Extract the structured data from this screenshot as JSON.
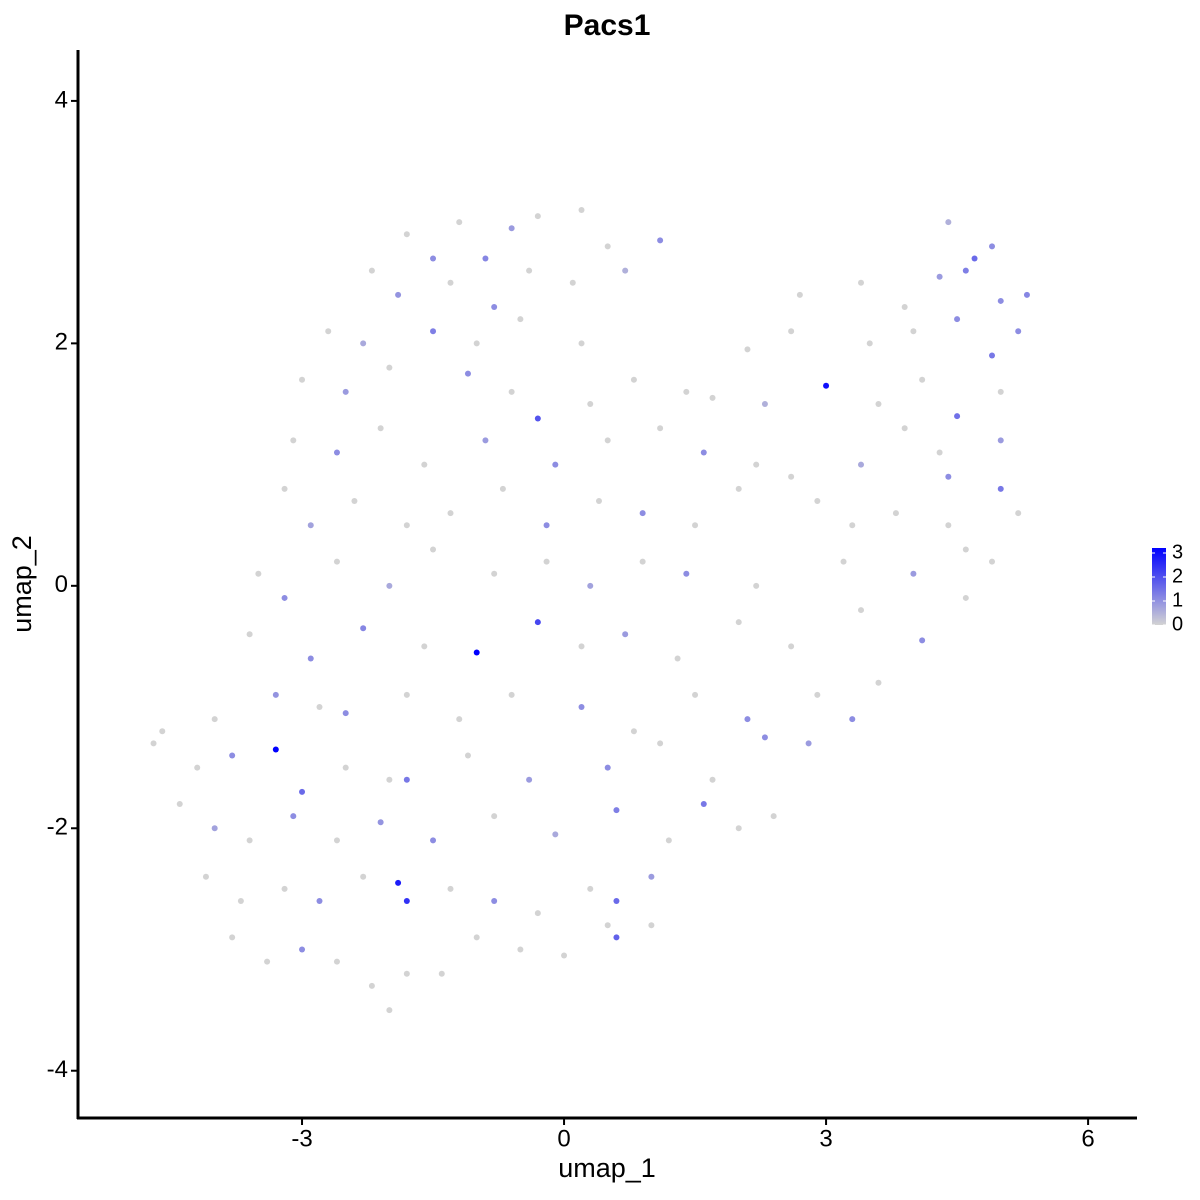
{
  "chart_data": {
    "type": "scatter",
    "title": "Pacs1",
    "xlabel": "umap_1",
    "ylabel": "umap_2",
    "xlim": [
      -5.565,
      6.56
    ],
    "ylim": [
      -4.39,
      4.42
    ],
    "xticks": [
      -3,
      0,
      3,
      6
    ],
    "yticks": [
      -4,
      -2,
      0,
      2,
      4
    ],
    "colorbar": {
      "low": "#d3d3d3",
      "high": "#0000ff",
      "clim": [
        0,
        3
      ],
      "ticks": [
        0,
        1,
        2,
        3
      ]
    },
    "x": [
      -1.8,
      -1.2,
      -0.6,
      -0.3,
      0.2,
      0.5,
      -1.5,
      -0.9,
      1.1,
      4.4,
      4.7,
      4.9,
      -2.2,
      -1.9,
      -1.3,
      -0.8,
      -0.4,
      0.1,
      0.7,
      2.7,
      3.4,
      3.9,
      4.3,
      4.6,
      5.0,
      5.3,
      -2.7,
      -2.3,
      -1.5,
      -1.0,
      -0.5,
      0.2,
      2.1,
      2.6,
      3.5,
      4.0,
      4.5,
      4.9,
      5.2,
      -3.0,
      -2.5,
      -2.0,
      -1.1,
      -0.6,
      -0.3,
      0.3,
      0.8,
      1.4,
      1.7,
      2.3,
      3.0,
      3.6,
      4.1,
      4.5,
      5.0,
      -3.1,
      -2.6,
      -2.1,
      -1.6,
      -0.9,
      -0.1,
      0.5,
      1.1,
      1.6,
      2.2,
      2.6,
      3.4,
      3.9,
      4.3,
      4.4,
      5.0,
      -3.2,
      -2.9,
      -2.4,
      -1.8,
      -1.3,
      -0.7,
      -0.2,
      0.4,
      0.9,
      1.5,
      2.0,
      2.9,
      3.3,
      3.8,
      4.4,
      5.0,
      5.2,
      -3.5,
      -3.2,
      -2.6,
      -2.0,
      -1.5,
      -0.8,
      -0.2,
      0.3,
      0.9,
      1.4,
      2.2,
      3.2,
      4.0,
      4.6,
      4.9,
      -3.6,
      -2.9,
      -2.3,
      -1.6,
      -1.0,
      -0.3,
      0.2,
      0.7,
      1.3,
      2.0,
      2.6,
      3.4,
      4.1,
      4.6,
      -4.6,
      -4.0,
      -3.3,
      -2.8,
      -2.5,
      -1.8,
      -1.2,
      -0.6,
      0.2,
      0.8,
      1.5,
      2.1,
      2.9,
      3.3,
      3.6,
      -4.7,
      -4.2,
      -3.8,
      -3.3,
      -3.0,
      -2.5,
      -2.0,
      -1.8,
      -1.1,
      -0.4,
      0.5,
      1.1,
      1.7,
      2.3,
      2.8,
      -4.4,
      -4.0,
      -3.6,
      -3.1,
      -2.6,
      -2.1,
      -1.5,
      -0.8,
      -0.1,
      0.6,
      1.2,
      1.6,
      2.0,
      2.4,
      -4.1,
      -3.7,
      -3.2,
      -2.8,
      -2.3,
      -1.9,
      -1.8,
      -1.3,
      -0.8,
      -0.3,
      0.3,
      0.6,
      1.0,
      -3.8,
      -3.4,
      -3.0,
      -2.6,
      -2.2,
      -2.0,
      -1.8,
      -1.4,
      -1.0,
      -0.5,
      0.0,
      0.5,
      0.6,
      1.0
    ],
    "y": [
      2.9,
      3.0,
      2.95,
      3.05,
      3.1,
      2.8,
      2.7,
      2.7,
      2.85,
      3.0,
      2.7,
      2.8,
      2.6,
      2.4,
      2.5,
      2.3,
      2.6,
      2.5,
      2.6,
      2.4,
      2.5,
      2.3,
      2.55,
      2.6,
      2.35,
      2.4,
      2.1,
      2.0,
      2.1,
      2.0,
      2.2,
      2.0,
      1.95,
      2.1,
      2.0,
      2.1,
      2.2,
      1.9,
      2.1,
      1.7,
      1.6,
      1.8,
      1.75,
      1.6,
      1.38,
      1.5,
      1.7,
      1.6,
      1.55,
      1.5,
      1.65,
      1.5,
      1.7,
      1.4,
      1.6,
      1.2,
      1.1,
      1.3,
      1.0,
      1.2,
      1.0,
      1.2,
      1.3,
      1.1,
      1.0,
      0.9,
      1.0,
      1.3,
      1.1,
      0.9,
      1.2,
      0.8,
      0.5,
      0.7,
      0.5,
      0.6,
      0.8,
      0.5,
      0.7,
      0.6,
      0.5,
      0.8,
      0.7,
      0.5,
      0.6,
      0.5,
      0.8,
      0.6,
      0.1,
      -0.1,
      0.2,
      0.0,
      0.3,
      0.1,
      0.2,
      0.0,
      0.2,
      0.1,
      0.0,
      0.2,
      0.1,
      0.3,
      0.2,
      -0.4,
      -0.6,
      -0.35,
      -0.5,
      -0.55,
      -0.3,
      -0.5,
      -0.4,
      -0.6,
      -0.3,
      -0.5,
      -0.2,
      -0.45,
      -0.1,
      -1.2,
      -1.1,
      -0.9,
      -1.0,
      -1.05,
      -0.9,
      -1.1,
      -0.9,
      -1.0,
      -1.2,
      -0.9,
      -1.1,
      -0.9,
      -1.1,
      -0.8,
      -1.3,
      -1.5,
      -1.4,
      -1.35,
      -1.7,
      -1.5,
      -1.6,
      -1.6,
      -1.4,
      -1.6,
      -1.5,
      -1.3,
      -1.6,
      -1.25,
      -1.3,
      -1.8,
      -2.0,
      -2.1,
      -1.9,
      -2.1,
      -1.95,
      -2.1,
      -1.9,
      -2.05,
      -1.85,
      -2.1,
      -1.8,
      -2.0,
      -1.9,
      -2.4,
      -2.6,
      -2.5,
      -2.6,
      -2.4,
      -2.45,
      -2.6,
      -2.5,
      -2.6,
      -2.7,
      -2.5,
      -2.6,
      -2.4,
      -2.9,
      -3.1,
      -3.0,
      -3.1,
      -3.3,
      -3.5,
      -3.2,
      -3.2,
      -2.9,
      -3.0,
      -3.05,
      -2.8,
      -2.9,
      -2.8
    ],
    "values": [
      0,
      0,
      0.8,
      0,
      0,
      0,
      1,
      1.1,
      1,
      0.5,
      1.5,
      1,
      0,
      0.9,
      0,
      1,
      0,
      0,
      0.5,
      0,
      0,
      0,
      0.8,
      1.2,
      1,
      1.1,
      0,
      0.6,
      1.2,
      0,
      0,
      0,
      0,
      0,
      0,
      0,
      1,
      1.3,
      1,
      0,
      0.8,
      0,
      1,
      0,
      1.8,
      0,
      0,
      0,
      0,
      0.5,
      2.8,
      0,
      0,
      1.4,
      0,
      0,
      1,
      0,
      0,
      0.8,
      1,
      0,
      0,
      1,
      0,
      0,
      0.6,
      0,
      0,
      1,
      0.8,
      0,
      0.7,
      0,
      0,
      0,
      0,
      1,
      0,
      1,
      0,
      0,
      0,
      0,
      0,
      0,
      1.3,
      0,
      0,
      1,
      0,
      0.6,
      0,
      0,
      0,
      0.7,
      0,
      1,
      0,
      0,
      0.8,
      0,
      0,
      0,
      1,
      1.1,
      0,
      3,
      2,
      0,
      0.8,
      0,
      0,
      0,
      0,
      1,
      0,
      0,
      0,
      0.9,
      0,
      1,
      0,
      0,
      0,
      1,
      0,
      0,
      1,
      0,
      1,
      0,
      0,
      0,
      1,
      3,
      1.5,
      0,
      0,
      1.3,
      0,
      0.8,
      1,
      0,
      0,
      1,
      0.8,
      0,
      0.7,
      0,
      1,
      0,
      0.9,
      1,
      0,
      0.6,
      1.2,
      0,
      1.3,
      0,
      0,
      0,
      0,
      0,
      1,
      0,
      2.6,
      2.3,
      0,
      1,
      0,
      0,
      1.5,
      0.8,
      0,
      0,
      1,
      0,
      0,
      0,
      0,
      0,
      0,
      0,
      0,
      0,
      1.6,
      0
    ]
  }
}
